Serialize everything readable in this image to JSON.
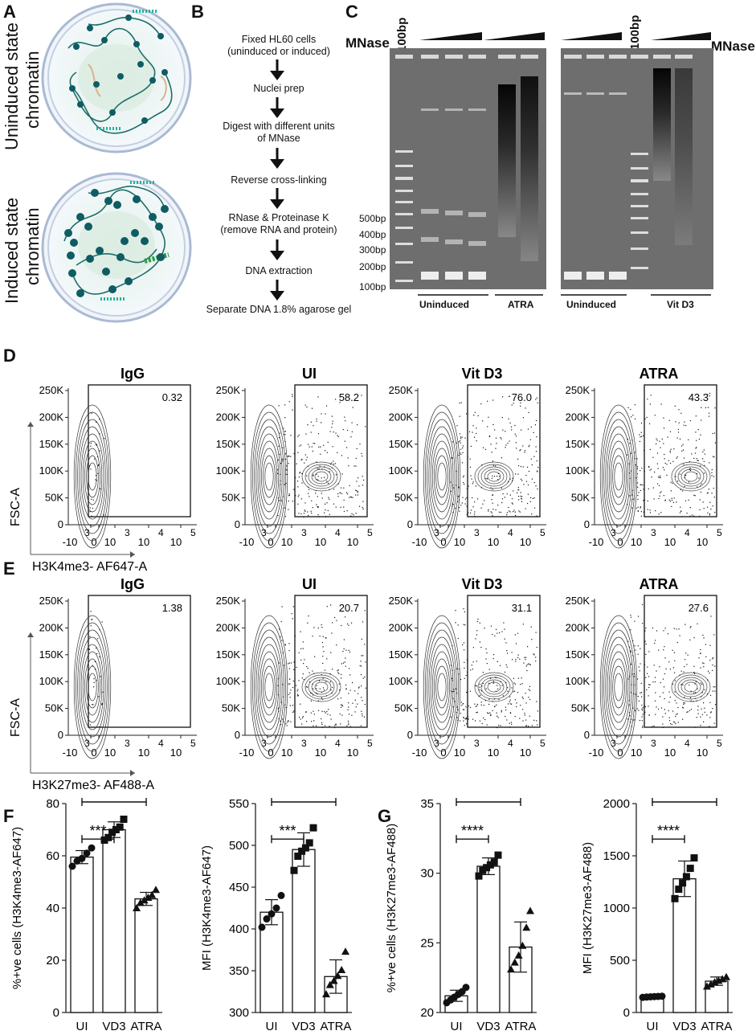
{
  "panels": {
    "A": "A",
    "B": "B",
    "C": "C",
    "D": "D",
    "E": "E",
    "F": "F",
    "G": "G"
  },
  "panelA": {
    "top_label_1": "Uninduced state",
    "top_label_2": "chromatin",
    "bottom_label_1": "Induced state",
    "bottom_label_2": "chromatin"
  },
  "panelB": {
    "steps": [
      "Fixed HL60 cells\n(uninduced or induced)",
      "Nuclei prep",
      "Digest with different units\nof MNase",
      "Reverse cross-linking",
      "RNase & Proteinase K\n(remove RNA and protein)",
      "DNA extraction",
      "Separate DNA 1.8% agarose gel"
    ]
  },
  "panelC": {
    "mnase_left": "MNase",
    "mnase_right": "MNase",
    "ladder_label_left": "100bp",
    "ladder_label_right": "100bp",
    "size_markers": [
      "500bp",
      "400bp",
      "300bp",
      "200bp",
      "100bp"
    ],
    "groups": [
      "Uninduced",
      "ATRA",
      "Uninduced",
      "Vit D3"
    ]
  },
  "panelD": {
    "titles": [
      "IgG",
      "UI",
      "Vit D3",
      "ATRA"
    ],
    "gate_values": [
      "0.32",
      "58.2",
      "76.0",
      "43.3"
    ],
    "y_ticks": [
      "250K",
      "200K",
      "150K",
      "100K",
      "50K",
      "0"
    ],
    "y_axis_label": "FSC-A",
    "x_axis_label": "H3K4me3- AF647-A"
  },
  "panelE": {
    "titles": [
      "IgG",
      "UI",
      "Vit D3",
      "ATRA"
    ],
    "gate_values": [
      "1.38",
      "20.7",
      "31.1",
      "27.6"
    ],
    "y_ticks": [
      "250K",
      "200K",
      "150K",
      "100K",
      "50K",
      "0"
    ],
    "y_axis_label": "FSC-A",
    "x_axis_label": "H3K27me3- AF488-A"
  },
  "flow_x_ticks": [
    "-10",
    "3",
    "0",
    "10",
    "3",
    "10",
    "4",
    "10",
    "5"
  ],
  "chart_data": [
    {
      "type": "bar",
      "categories": [
        "UI",
        "VD3",
        "ATRA"
      ],
      "values": [
        59.5,
        70.0,
        43.5
      ],
      "errors": [
        2.5,
        3.0,
        2.5
      ],
      "points": [
        [
          56,
          58,
          59,
          61,
          63
        ],
        [
          66,
          67,
          69,
          70,
          71,
          74
        ],
        [
          40,
          42,
          43,
          44,
          45,
          47
        ]
      ],
      "ylabel": "%+ve cells (H3K4me3-AF647)",
      "ylim": [
        0,
        80
      ],
      "yticks": [
        0,
        20,
        40,
        60,
        80
      ],
      "significance": [
        [
          "UI",
          "VD3",
          "***"
        ],
        [
          "UI",
          "ATRA",
          "****"
        ]
      ]
    },
    {
      "type": "bar",
      "categories": [
        "UI",
        "VD3",
        "ATRA"
      ],
      "values": [
        420,
        495,
        343
      ],
      "errors": [
        15,
        20,
        20
      ],
      "points": [
        [
          402,
          412,
          418,
          425,
          440
        ],
        [
          470,
          487,
          493,
          497,
          503,
          521
        ],
        [
          322,
          333,
          338,
          344,
          351,
          373
        ]
      ],
      "ylabel": "MFI (H3K4me3-AF647)",
      "ylim": [
        300,
        550
      ],
      "yticks": [
        300,
        350,
        400,
        450,
        500,
        550
      ],
      "significance": [
        [
          "UI",
          "VD3",
          "***"
        ],
        [
          "UI",
          "ATRA",
          "***"
        ]
      ]
    },
    {
      "type": "bar",
      "categories": [
        "UI",
        "VD3",
        "ATRA"
      ],
      "values": [
        21.2,
        30.5,
        24.7
      ],
      "errors": [
        0.4,
        0.6,
        1.8
      ],
      "points": [
        [
          20.7,
          20.9,
          21.1,
          21.3,
          21.5,
          21.8
        ],
        [
          29.8,
          30.2,
          30.4,
          30.6,
          30.8,
          31.3
        ],
        [
          23.1,
          23.6,
          24.1,
          24.8,
          26.1,
          27.3
        ]
      ],
      "ylabel": "%+ve cells (H3K27me3-AF488)",
      "ylim": [
        20,
        35
      ],
      "yticks": [
        20,
        25,
        30,
        35
      ],
      "significance": [
        [
          "UI",
          "VD3",
          "****"
        ],
        [
          "UI",
          "ATRA",
          "***"
        ]
      ]
    },
    {
      "type": "bar",
      "categories": [
        "UI",
        "VD3",
        "ATRA"
      ],
      "values": [
        150,
        1280,
        300
      ],
      "errors": [
        5,
        170,
        40
      ],
      "points": [
        [
          145,
          148,
          150,
          152,
          154,
          156
        ],
        [
          1090,
          1180,
          1240,
          1300,
          1380,
          1480
        ],
        [
          250,
          270,
          290,
          305,
          320,
          340
        ]
      ],
      "ylabel": "MFI (H3K27me3-AF488)",
      "ylim": [
        0,
        2000
      ],
      "yticks": [
        0,
        500,
        1000,
        1500,
        2000
      ],
      "significance": [
        [
          "UI",
          "VD3",
          "****"
        ],
        [
          "UI",
          "ATRA",
          "****"
        ]
      ]
    }
  ]
}
